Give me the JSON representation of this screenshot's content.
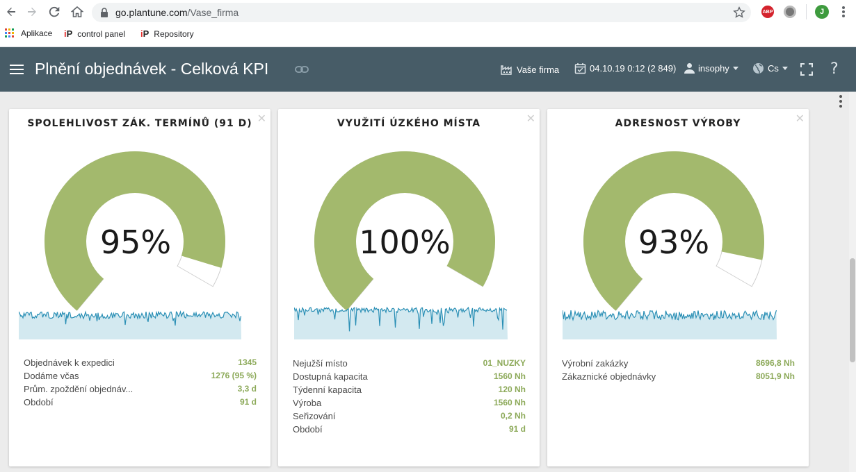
{
  "browser": {
    "url_domain": "go.plantune.com",
    "url_path": "/Vase_firma",
    "ext_abp": "ABP",
    "ext_profile": "J",
    "bookmarks": [
      {
        "label": "Aplikace"
      },
      {
        "label": "control panel"
      },
      {
        "label": "Repository"
      }
    ],
    "bookmark_ip_text": "P",
    "bookmark_ip_letter": "i"
  },
  "header": {
    "title": "Plnění objednávek - Celková KPI",
    "company": "Vaše firma",
    "datetime": "04.10.19 0:12 (2 849)",
    "user": "insophy",
    "language": "Cs",
    "help": "?"
  },
  "colors": {
    "header_bg": "#475c67",
    "gauge_green": "#a3b96d",
    "spark_line": "#2a8fb5",
    "spark_fill": "#d3e9f0",
    "value_green": "#8daa5a"
  },
  "cards": [
    {
      "title": "SPOLEHLIVOST ZÁK. TERMÍNŮ (91 D)",
      "value": "95%",
      "fraction": 0.95,
      "stats": [
        {
          "label": "Objednávek k expedici",
          "value": "1345"
        },
        {
          "label": "Dodáme včas",
          "value": "1276 (95 %)"
        },
        {
          "label": "Prům. zpoždění objednáv...",
          "value": "3,3 d"
        },
        {
          "label": "Období",
          "value": "91 d"
        }
      ]
    },
    {
      "title": "VYUŽITÍ ÚZKÉHO MÍSTA",
      "value": "100%",
      "fraction": 1.0,
      "stats": [
        {
          "label": "Nejužší místo",
          "value": "01_NUZKY"
        },
        {
          "label": "Dostupná kapacita",
          "value": "1560 Nh"
        },
        {
          "label": "Týdenní kapacita",
          "value": "120 Nh"
        },
        {
          "label": "Výroba",
          "value": "1560 Nh"
        },
        {
          "label": "Seřizování",
          "value": "0,2 Nh"
        },
        {
          "label": "Období",
          "value": "91 d"
        }
      ]
    },
    {
      "title": "ADRESNOST VÝROBY",
      "value": "93%",
      "fraction": 0.93,
      "stats": [
        {
          "label": "Výrobní zakázky",
          "value": "8696,8 Nh"
        },
        {
          "label": "Zákaznické objednávky",
          "value": "8051,9 Nh"
        }
      ]
    }
  ]
}
